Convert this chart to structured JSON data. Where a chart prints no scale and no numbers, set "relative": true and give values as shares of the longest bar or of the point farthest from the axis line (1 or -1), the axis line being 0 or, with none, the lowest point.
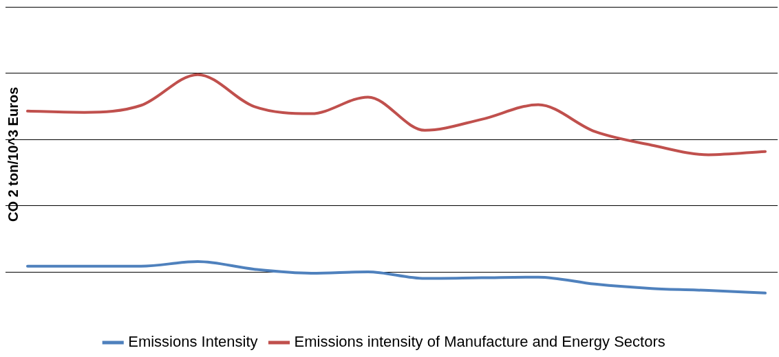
{
  "chart_data": {
    "type": "line",
    "relative": true,
    "ylabel": "CO 2 ton/10^3 Euros",
    "categories": [
      null,
      null,
      null,
      null,
      null,
      null,
      null,
      null,
      null,
      null,
      null,
      null,
      null,
      null
    ],
    "series": [
      {
        "name": "Emissions Intensity",
        "color": "#4f81bd",
        "values": [
          0.123,
          0.123,
          0.123,
          0.144,
          0.109,
          0.091,
          0.097,
          0.067,
          0.07,
          0.073,
          0.041,
          0.021,
          0.012,
          0
        ]
      },
      {
        "name": "Emissions intensity of Manufacture and Energy Sectors",
        "color": "#c0504d",
        "values": [
          0.833,
          0.827,
          0.859,
          1,
          0.853,
          0.821,
          0.897,
          0.745,
          0.795,
          0.862,
          0.739,
          0.677,
          0.633,
          0.648
        ]
      }
    ],
    "grid": true,
    "legend": "bottom",
    "marker": "none",
    "line_style": "solid"
  }
}
